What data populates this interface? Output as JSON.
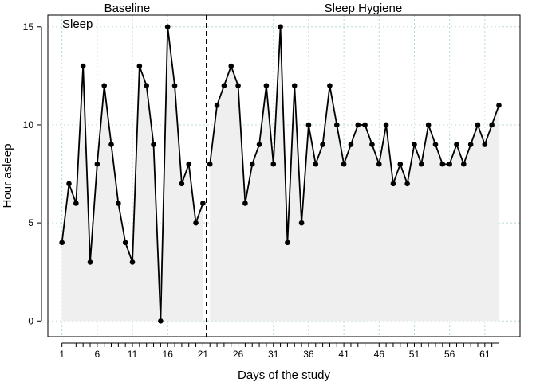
{
  "chart_data": {
    "type": "line",
    "panel_label": "Sleep",
    "xlabel": "Days of the study",
    "ylabel": "Hour asleep",
    "xlim": [
      -1,
      66
    ],
    "ylim": [
      -0.8,
      15.6
    ],
    "x_ticks": [
      1,
      6,
      11,
      16,
      21,
      26,
      31,
      36,
      41,
      46,
      51,
      56,
      61
    ],
    "y_ticks": [
      0,
      5,
      10,
      15
    ],
    "grid": true,
    "phase_change_after_day": 21.5,
    "phases": [
      {
        "name": "Baseline",
        "start_day": 1,
        "end_day": 21
      },
      {
        "name": "Sleep Hygiene",
        "start_day": 22,
        "end_day": 63
      }
    ],
    "series": [
      {
        "x": [
          1,
          2,
          3,
          4,
          5,
          6,
          7,
          8,
          9,
          10,
          11,
          12,
          13,
          14,
          15,
          16,
          17,
          18,
          19,
          20,
          21
        ],
        "values": [
          4,
          7,
          6,
          13,
          3,
          8,
          12,
          9,
          6,
          4,
          3,
          13,
          12,
          9,
          0,
          15,
          12,
          7,
          8,
          5,
          6
        ]
      },
      {
        "x": [
          22,
          23,
          24,
          25,
          26,
          27,
          28,
          29,
          30,
          31,
          32,
          33,
          34,
          35,
          36,
          37,
          38,
          39,
          40,
          41,
          42,
          43,
          44,
          45,
          46,
          47,
          48,
          49,
          50,
          51,
          52,
          53,
          54,
          55,
          56,
          57,
          58,
          59,
          60,
          61,
          62,
          63
        ],
        "values": [
          8,
          11,
          12,
          13,
          12,
          6,
          8,
          9,
          12,
          8,
          15,
          4,
          12,
          5,
          10,
          8,
          9,
          12,
          10,
          8,
          9,
          10,
          10,
          9,
          8,
          10,
          7,
          8,
          7,
          9,
          8,
          10,
          9,
          8,
          8,
          9,
          8,
          9,
          10,
          9,
          10,
          11
        ]
      }
    ],
    "colors": {
      "line": "#000000",
      "area_fill": "#efefef",
      "grid": "#b7dcd0"
    }
  }
}
